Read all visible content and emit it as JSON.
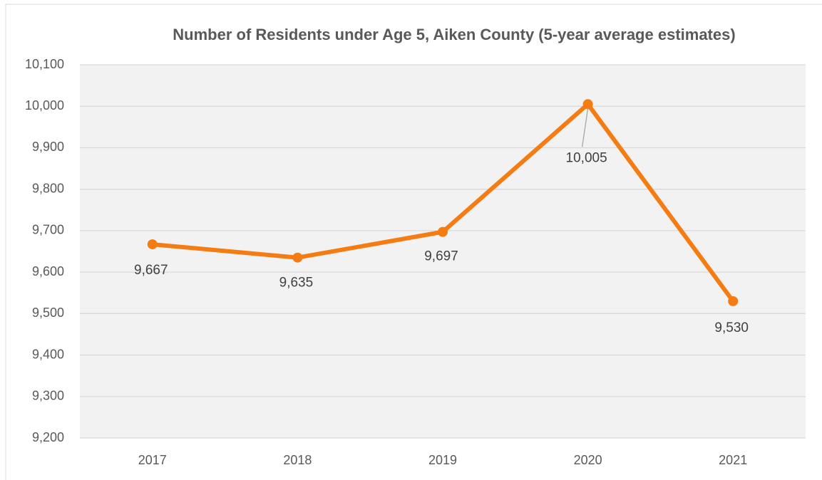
{
  "chart_data": {
    "type": "line",
    "title": "Number of Residents under Age 5, Aiken County (5-year average estimates)",
    "categories": [
      "2017",
      "2018",
      "2019",
      "2020",
      "2021"
    ],
    "series": [
      {
        "name": "Residents under Age 5",
        "color": "#f57c12",
        "values": [
          9667,
          9635,
          9697,
          10005,
          9530
        ],
        "value_labels": [
          "9,667",
          "9,635",
          "9,697",
          "10,005",
          "9,530"
        ]
      }
    ],
    "ylim": [
      9200,
      10100
    ],
    "yticks": [
      {
        "value": 9200,
        "label": "9,200"
      },
      {
        "value": 9300,
        "label": "9,300"
      },
      {
        "value": 9400,
        "label": "9,400"
      },
      {
        "value": 9500,
        "label": "9,500"
      },
      {
        "value": 9600,
        "label": "9,600"
      },
      {
        "value": 9700,
        "label": "9,700"
      },
      {
        "value": 9800,
        "label": "9,800"
      },
      {
        "value": 9900,
        "label": "9,900"
      },
      {
        "value": 10000,
        "label": "10,000"
      },
      {
        "value": 10100,
        "label": "10,100"
      }
    ],
    "grid": true
  }
}
